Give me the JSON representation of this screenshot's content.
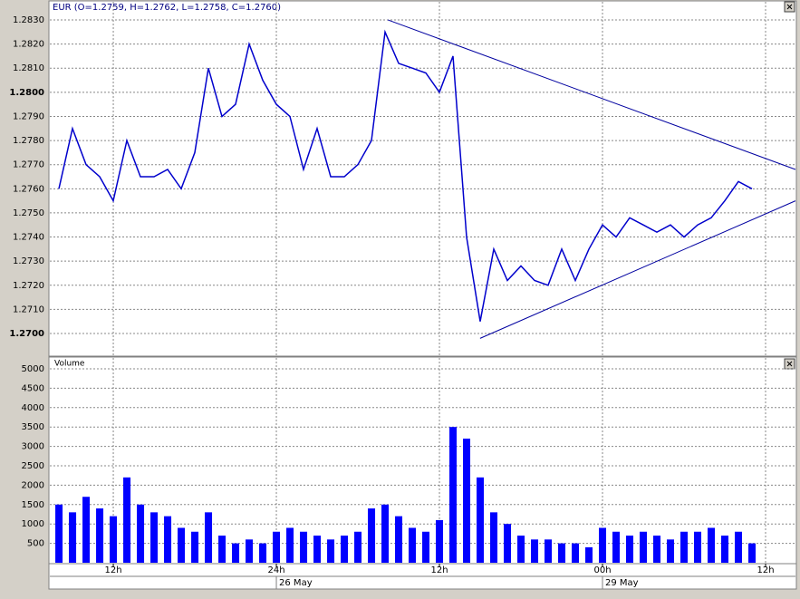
{
  "chart_data": [
    {
      "type": "line",
      "title": "EUR (O=1.2759, H=1.2762, L=1.2758, C=1.2760)",
      "xlim": [
        7.33,
        62.2
      ],
      "ylim": [
        1.2691,
        1.28375
      ],
      "yticks": [
        {
          "value": 1.283,
          "label": "1.2830"
        },
        {
          "value": 1.282,
          "label": "1.2820"
        },
        {
          "value": 1.281,
          "label": "1.2810"
        },
        {
          "value": 1.28,
          "label": "1.2800"
        },
        {
          "value": 1.279,
          "label": "1.2790"
        },
        {
          "value": 1.278,
          "label": "1.2780"
        },
        {
          "value": 1.277,
          "label": "1.2770"
        },
        {
          "value": 1.276,
          "label": "1.2760"
        },
        {
          "value": 1.275,
          "label": "1.2750"
        },
        {
          "value": 1.274,
          "label": "1.2740"
        },
        {
          "value": 1.273,
          "label": "1.2730"
        },
        {
          "value": 1.272,
          "label": "1.2720"
        },
        {
          "value": 1.271,
          "label": "1.2710"
        },
        {
          "value": 1.27,
          "label": "1.2700"
        }
      ],
      "grid": true,
      "color": "#0000cc",
      "x": [
        8,
        9,
        10,
        11,
        12,
        13,
        14,
        15,
        16,
        17,
        18,
        19,
        20,
        21,
        22,
        23,
        24,
        25,
        26,
        27,
        28,
        29,
        30,
        31,
        32,
        33,
        34,
        35,
        36,
        37,
        38,
        39,
        40,
        41,
        42,
        43,
        44,
        45,
        46,
        47,
        48,
        49,
        50,
        51,
        52,
        53,
        54,
        55,
        56,
        57,
        58,
        59
      ],
      "values": [
        1.276,
        1.2785,
        1.277,
        1.2765,
        1.2755,
        1.278,
        1.2765,
        1.2765,
        1.2768,
        1.276,
        1.2775,
        1.281,
        1.279,
        1.2795,
        1.282,
        1.2805,
        1.2795,
        1.279,
        1.2768,
        1.2785,
        1.2765,
        1.2765,
        1.277,
        1.278,
        1.2825,
        1.2812,
        1.281,
        1.2808,
        1.28,
        1.2815,
        1.274,
        1.2705,
        1.2735,
        1.2722,
        1.2728,
        1.2722,
        1.272,
        1.2735,
        1.2722,
        1.2735,
        1.2745,
        1.274,
        1.2748,
        1.2745,
        1.2742,
        1.2745,
        1.274,
        1.2745,
        1.2748,
        1.2755,
        1.2763,
        1.276
      ],
      "trendlines": [
        {
          "color": "#0000a0",
          "x": [
            32.2,
            62.2
          ],
          "values": [
            1.283,
            1.2768
          ]
        },
        {
          "color": "#0000a0",
          "x": [
            38.99,
            62.2
          ],
          "values": [
            1.2698,
            1.2755
          ]
        }
      ]
    },
    {
      "type": "bar",
      "title": "Volume",
      "xlim": [
        7.33,
        62.2
      ],
      "ylim": [
        0,
        5280
      ],
      "yticks": [
        500,
        1000,
        1500,
        2000,
        2500,
        3000,
        3500,
        4000,
        4500,
        5000
      ],
      "xticks": [
        {
          "value": 12,
          "label": "12h"
        },
        {
          "value": 24,
          "label": "24h"
        },
        {
          "value": 36,
          "label": "12h"
        },
        {
          "value": 48,
          "label": "00h"
        },
        {
          "value": 60,
          "label": "12h"
        }
      ],
      "dates": [
        {
          "value": 24,
          "label": "26 May"
        },
        {
          "value": 48,
          "label": "29 May"
        }
      ],
      "grid": true,
      "color": "#0000ff",
      "x": [
        8,
        9,
        10,
        11,
        12,
        13,
        14,
        15,
        16,
        17,
        18,
        19,
        20,
        21,
        22,
        23,
        24,
        25,
        26,
        27,
        28,
        29,
        30,
        31,
        32,
        33,
        34,
        35,
        36,
        37,
        38,
        39,
        40,
        41,
        42,
        43,
        44,
        45,
        46,
        47,
        48,
        49,
        50,
        51,
        52,
        53,
        54,
        55,
        56,
        57,
        58,
        59
      ],
      "values": [
        1500,
        1300,
        1700,
        1400,
        1200,
        2200,
        1500,
        1300,
        1200,
        900,
        800,
        1300,
        700,
        500,
        600,
        500,
        800,
        900,
        800,
        700,
        600,
        700,
        800,
        1400,
        1500,
        1200,
        900,
        800,
        1100,
        3500,
        3200,
        2200,
        1300,
        1000,
        700,
        600,
        600,
        500,
        500,
        400,
        900,
        800,
        700,
        800,
        700,
        600,
        800,
        800,
        900,
        700,
        800,
        500
      ]
    }
  ]
}
